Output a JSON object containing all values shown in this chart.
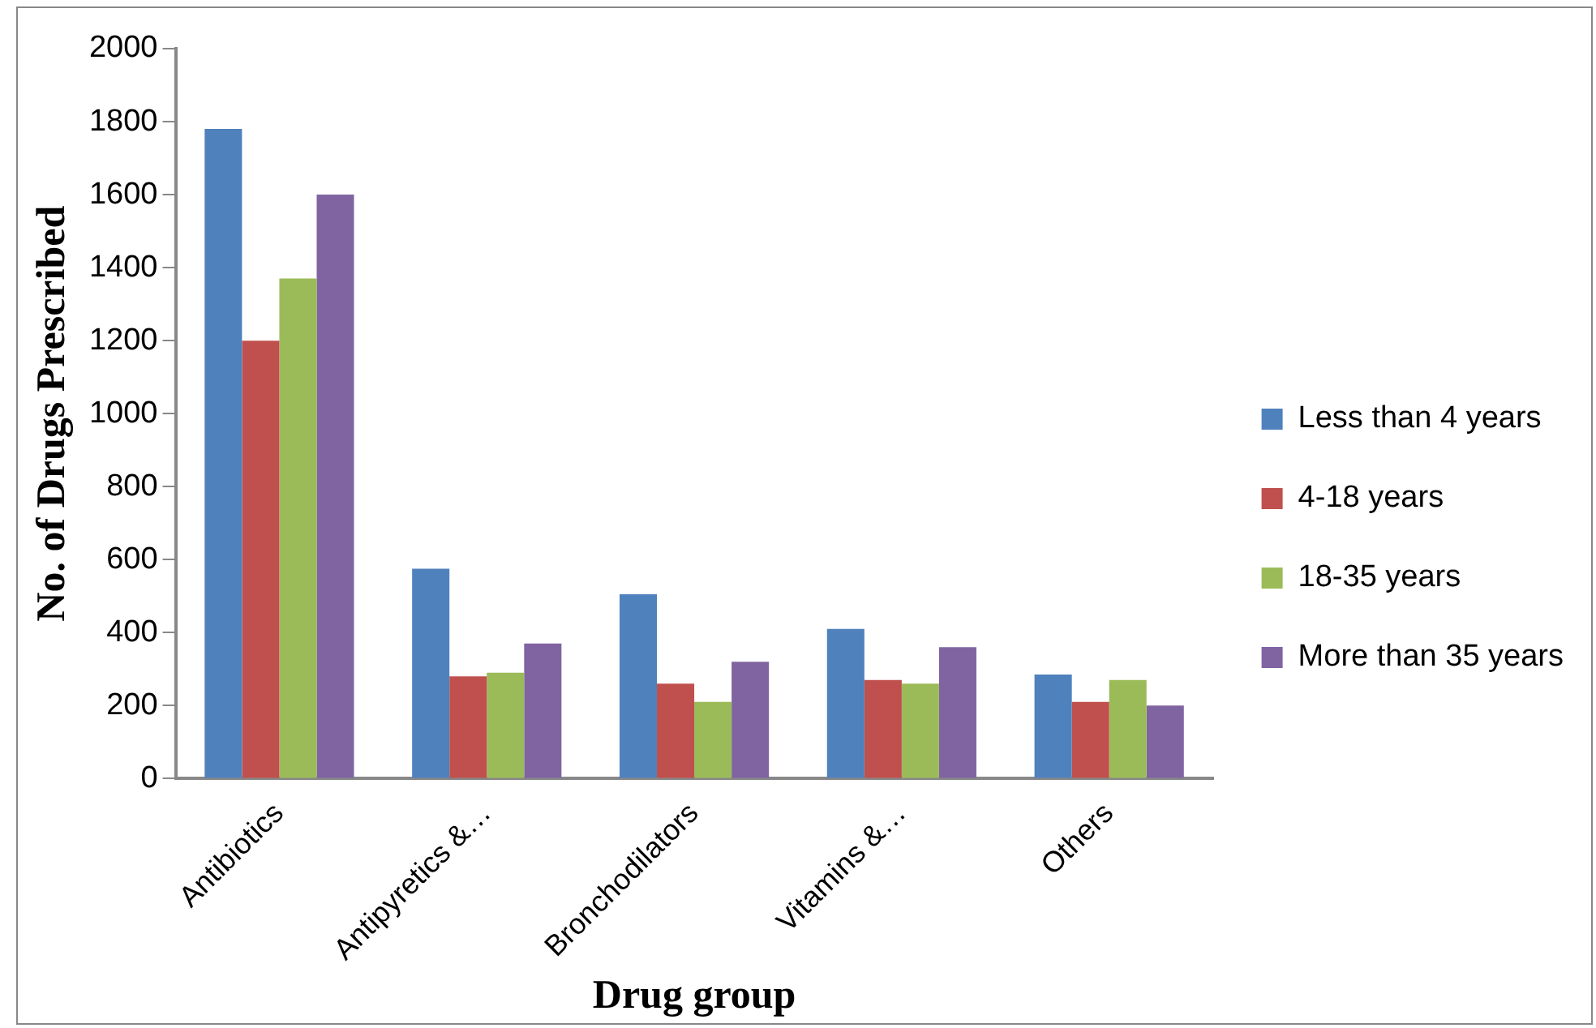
{
  "chart_data": {
    "type": "bar",
    "xlabel": "Drug group",
    "ylabel": "No. of Drugs Prescribed",
    "categories": [
      "Antibiotics",
      "Antipyretics &…",
      "Bronchodilators",
      "Vitamins &…",
      "Others"
    ],
    "series": [
      {
        "name": "Less than 4 years",
        "color": "#4f81bd",
        "values": [
          1780,
          575,
          505,
          410,
          285
        ]
      },
      {
        "name": "4-18 years",
        "color": "#c0504d",
        "values": [
          1200,
          280,
          260,
          270,
          210
        ]
      },
      {
        "name": "18-35 years",
        "color": "#9bbb59",
        "values": [
          1370,
          290,
          210,
          260,
          270
        ]
      },
      {
        "name": "More than 35 years",
        "color": "#8064a2",
        "values": [
          1600,
          370,
          320,
          360,
          200
        ]
      }
    ],
    "ylim": [
      0,
      2000
    ],
    "yticks": [
      0,
      200,
      400,
      600,
      800,
      1000,
      1200,
      1400,
      1600,
      1800,
      2000
    ],
    "grid": false,
    "legend": "right"
  }
}
